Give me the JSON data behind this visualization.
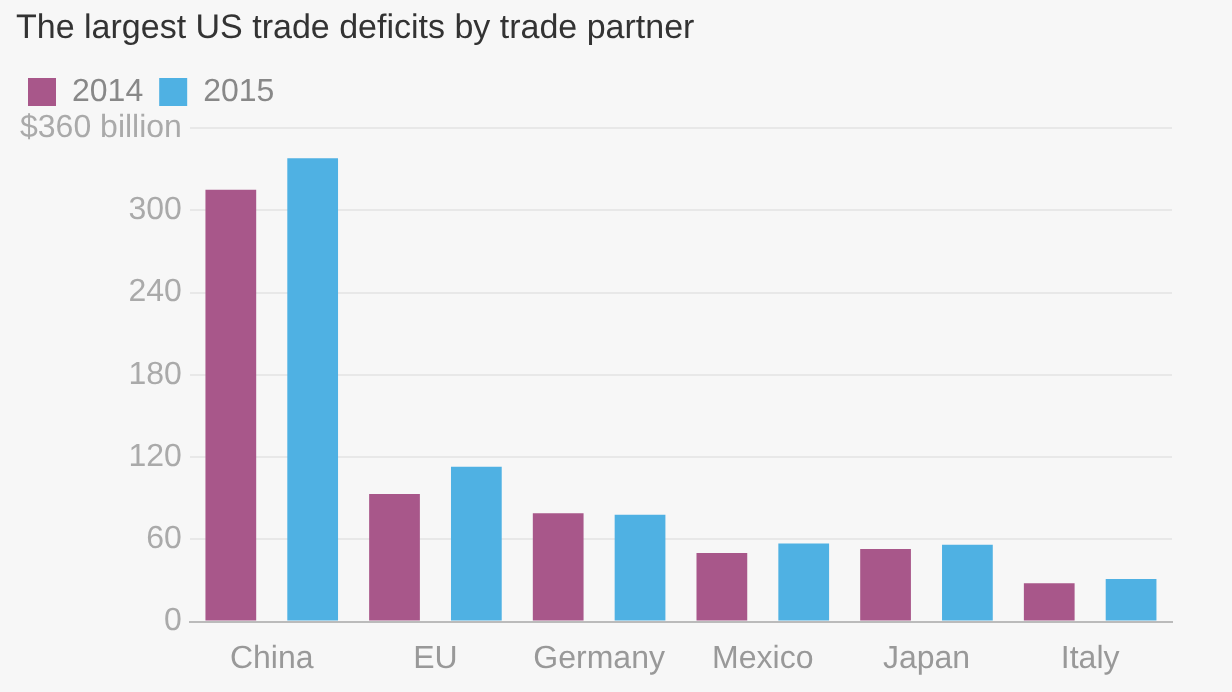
{
  "chart_data": {
    "type": "bar",
    "title": "The largest US trade deficits by trade partner",
    "categories": [
      "China",
      "EU",
      "Germany",
      "Mexico",
      "Japan",
      "Italy"
    ],
    "series": [
      {
        "name": "2014",
        "color": "#a8578a",
        "values": [
          315,
          93,
          79,
          50,
          53,
          28
        ]
      },
      {
        "name": "2015",
        "color": "#4fb1e3",
        "values": [
          338,
          113,
          78,
          57,
          56,
          31
        ]
      }
    ],
    "ylim": [
      0,
      360
    ],
    "yticks": [
      0,
      60,
      120,
      180,
      240,
      300,
      {
        "value": 360,
        "label": "$360 billion"
      }
    ],
    "grid": "y",
    "legend": "top left"
  }
}
